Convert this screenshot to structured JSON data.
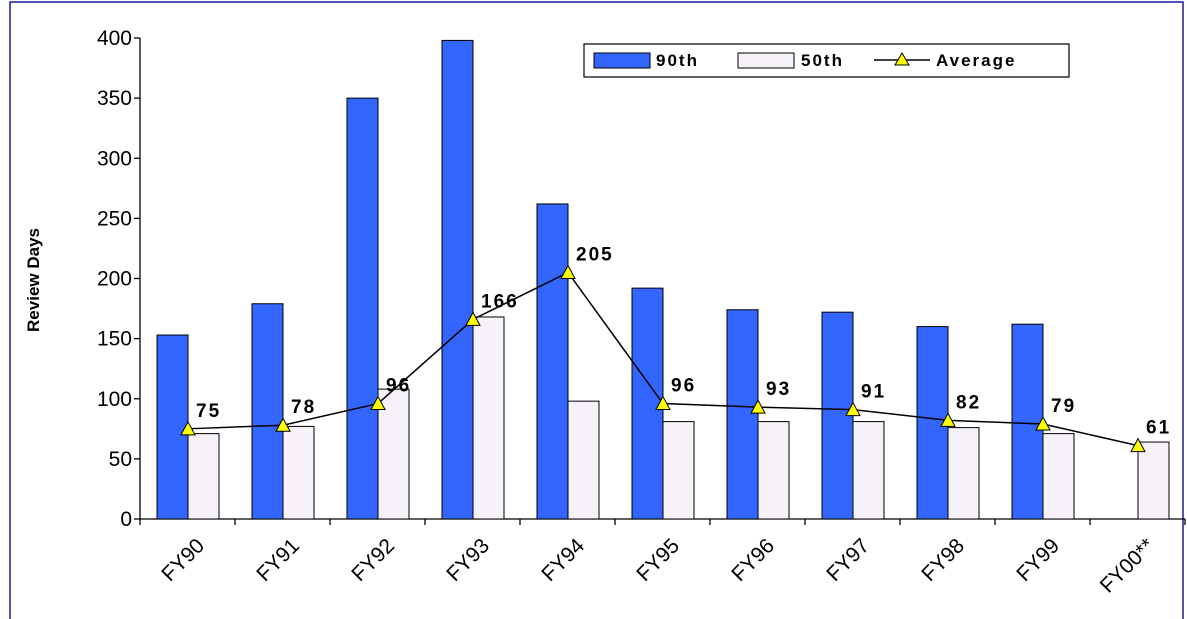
{
  "chart_data": {
    "type": "bar",
    "categories": [
      "FY90",
      "FY91",
      "FY92",
      "FY93",
      "FY94",
      "FY95",
      "FY96",
      "FY97",
      "FY98",
      "FY99",
      "FY00**"
    ],
    "series": [
      {
        "name": "90th",
        "kind": "bar",
        "color": "#3366ff",
        "values": [
          153,
          179,
          350,
          398,
          262,
          192,
          174,
          172,
          160,
          162,
          null
        ]
      },
      {
        "name": "50th",
        "kind": "bar",
        "color": "#f7f2fa",
        "values": [
          71,
          77,
          108,
          168,
          98,
          81,
          81,
          81,
          76,
          71,
          64
        ]
      },
      {
        "name": "Average",
        "kind": "line",
        "color": "#000000",
        "marker_color": "#ffff00",
        "values": [
          75,
          78,
          96,
          166,
          205,
          96,
          93,
          91,
          82,
          79,
          61
        ],
        "labels": [
          "75",
          "78",
          "96",
          "166",
          "205",
          "96",
          "93",
          "91",
          "82",
          "79",
          "61"
        ]
      }
    ],
    "ylabel": "Review Days",
    "xlabel": "",
    "ylim": [
      0,
      400
    ],
    "yticks": [
      0,
      50,
      100,
      150,
      200,
      250,
      300,
      350,
      400
    ],
    "legend_position": "top-right",
    "grid": false
  }
}
